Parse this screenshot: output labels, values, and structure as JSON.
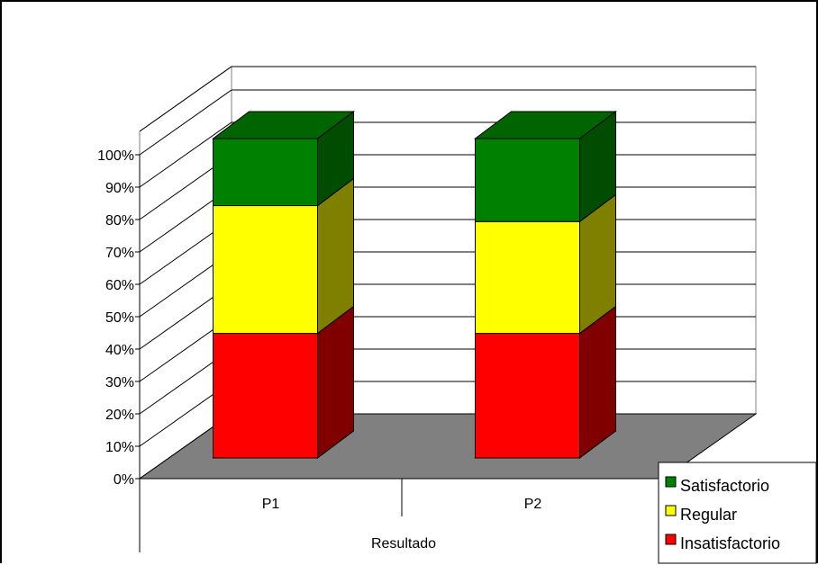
{
  "chart_data": {
    "type": "bar",
    "stacked": "percent",
    "three_d": true,
    "categories": [
      "P1",
      "P2"
    ],
    "xlabel": "Resultado",
    "ylabel": "",
    "ylim": [
      0,
      100
    ],
    "yticks": [
      "0%",
      "10%",
      "20%",
      "30%",
      "40%",
      "50%",
      "60%",
      "70%",
      "80%",
      "90%",
      "100%"
    ],
    "grid": true,
    "legend_position": "bottom-right",
    "series": [
      {
        "name": "Insatisfactorio",
        "values": [
          39,
          39
        ],
        "color": "#ff0000",
        "side_color": "#800000"
      },
      {
        "name": "Regular",
        "values": [
          40,
          35
        ],
        "color": "#ffff00",
        "side_color": "#808000"
      },
      {
        "name": "Satisfactorio",
        "values": [
          21,
          26
        ],
        "color": "#008000",
        "side_color": "#004c00",
        "top_color": "#006400"
      }
    ],
    "floor_color": "#808080",
    "legend_order": [
      "Satisfactorio",
      "Regular",
      "Insatisfactorio"
    ]
  }
}
